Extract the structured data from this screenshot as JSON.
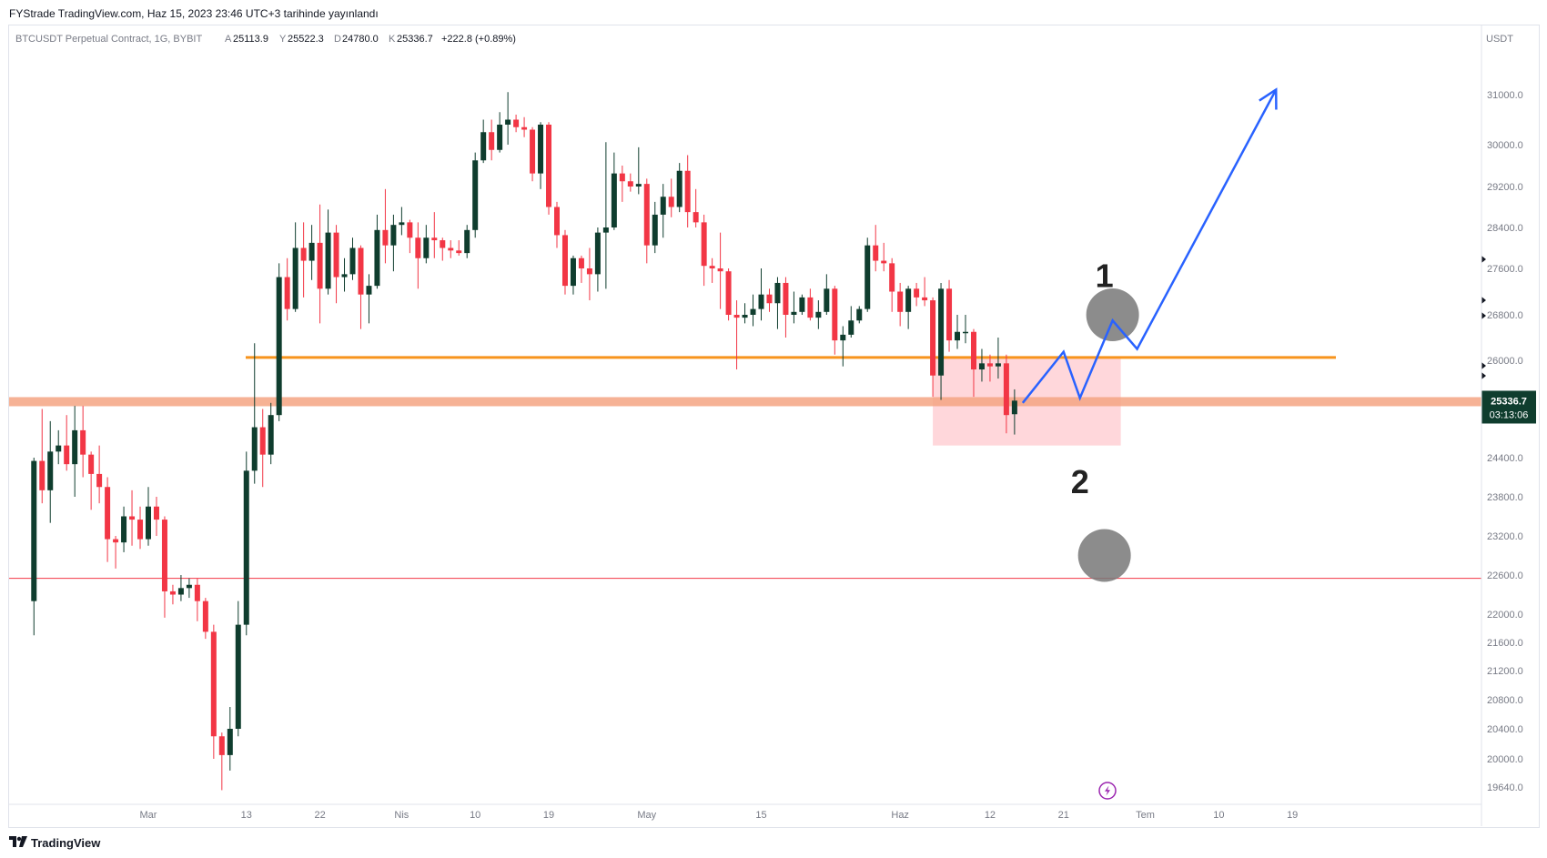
{
  "header": {
    "publish_line": "FYStrade TradingView.com, Haz 15, 2023 23:46 UTC+3 tarihinde yayınlandı"
  },
  "legend": {
    "symbol": "BTCUSDT Perpetual Contract, 1G, BYBIT",
    "o_label": "A",
    "o_val": "25113.9",
    "h_label": "Y",
    "h_val": "25522.3",
    "l_label": "D",
    "l_val": "24780.0",
    "c_label": "K",
    "c_val": "25336.7",
    "change": "+222.8 (+0.89%)"
  },
  "footer": {
    "brand": "TradingView"
  },
  "colors": {
    "up": "#0f3d2e",
    "down": "#f23645",
    "support_band": "#f4a582",
    "orange_line": "#f7941d",
    "red_line": "#f23645",
    "zone": "#ffcdd2",
    "projection": "#2962ff",
    "circle": "#787878",
    "price_tag": "#0f3d2e"
  },
  "chart_data": {
    "type": "candlestick",
    "currency": "USDT",
    "y_ticks": [
      31000,
      30000,
      29200,
      28400,
      27600,
      26800,
      26000,
      24400,
      23800,
      23200,
      22600,
      22000,
      21600,
      21200,
      20800,
      20400,
      20000,
      19640
    ],
    "y_tick_labels": [
      "31000.0",
      "30000.0",
      "29200.0",
      "28400.0",
      "27600.0",
      "26800.0",
      "26000.0",
      "24400.0",
      "23800.0",
      "23200.0",
      "22600.0",
      "22000.0",
      "21600.0",
      "21200.0",
      "20800.0",
      "20400.0",
      "20000.0",
      "19640.0"
    ],
    "x_labels": [
      {
        "label": "Mar",
        "date": "2023-03-01"
      },
      {
        "label": "13",
        "date": "2023-03-13"
      },
      {
        "label": "22",
        "date": "2023-03-22"
      },
      {
        "label": "Nis",
        "date": "2023-04-01"
      },
      {
        "label": "10",
        "date": "2023-04-10"
      },
      {
        "label": "19",
        "date": "2023-04-19"
      },
      {
        "label": "May",
        "date": "2023-05-01"
      },
      {
        "label": "15",
        "date": "2023-05-15"
      },
      {
        "label": "Haz",
        "date": "2023-06-01"
      },
      {
        "label": "12",
        "date": "2023-06-12"
      },
      {
        "label": "21",
        "date": "2023-06-21"
      },
      {
        "label": "Tem",
        "date": "2023-07-01"
      },
      {
        "label": "10",
        "date": "2023-07-10"
      },
      {
        "label": "19",
        "date": "2023-07-19"
      }
    ],
    "candles": [
      {
        "d": "2023-02-15",
        "o": 22200,
        "h": 24400,
        "l": 21700,
        "c": 24350
      },
      {
        "d": "2023-02-16",
        "o": 24350,
        "h": 25200,
        "l": 23700,
        "c": 23900
      },
      {
        "d": "2023-02-17",
        "o": 23900,
        "h": 25000,
        "l": 23400,
        "c": 24500
      },
      {
        "d": "2023-02-18",
        "o": 24500,
        "h": 24850,
        "l": 24300,
        "c": 24600
      },
      {
        "d": "2023-02-19",
        "o": 24600,
        "h": 25100,
        "l": 24200,
        "c": 24300
      },
      {
        "d": "2023-02-20",
        "o": 24300,
        "h": 25250,
        "l": 23800,
        "c": 24850
      },
      {
        "d": "2023-02-21",
        "o": 24850,
        "h": 25250,
        "l": 24100,
        "c": 24450
      },
      {
        "d": "2023-02-22",
        "o": 24450,
        "h": 24500,
        "l": 23600,
        "c": 24150
      },
      {
        "d": "2023-02-23",
        "o": 24150,
        "h": 24600,
        "l": 23700,
        "c": 23950
      },
      {
        "d": "2023-02-24",
        "o": 23950,
        "h": 24100,
        "l": 22800,
        "c": 23150
      },
      {
        "d": "2023-02-25",
        "o": 23150,
        "h": 23200,
        "l": 22700,
        "c": 23100
      },
      {
        "d": "2023-02-26",
        "o": 23100,
        "h": 23650,
        "l": 22950,
        "c": 23500
      },
      {
        "d": "2023-02-27",
        "o": 23500,
        "h": 23900,
        "l": 23050,
        "c": 23450
      },
      {
        "d": "2023-02-28",
        "o": 23450,
        "h": 23650,
        "l": 23000,
        "c": 23150
      },
      {
        "d": "2023-03-01",
        "o": 23150,
        "h": 23950,
        "l": 23050,
        "c": 23650
      },
      {
        "d": "2023-03-02",
        "o": 23650,
        "h": 23800,
        "l": 23200,
        "c": 23450
      },
      {
        "d": "2023-03-03",
        "o": 23450,
        "h": 23500,
        "l": 21950,
        "c": 22350
      },
      {
        "d": "2023-03-04",
        "o": 22350,
        "h": 22450,
        "l": 22150,
        "c": 22300
      },
      {
        "d": "2023-03-05",
        "o": 22300,
        "h": 22600,
        "l": 22200,
        "c": 22400
      },
      {
        "d": "2023-03-06",
        "o": 22400,
        "h": 22550,
        "l": 22250,
        "c": 22450
      },
      {
        "d": "2023-03-07",
        "o": 22450,
        "h": 22550,
        "l": 21900,
        "c": 22200
      },
      {
        "d": "2023-03-08",
        "o": 22200,
        "h": 22250,
        "l": 21650,
        "c": 21750
      },
      {
        "d": "2023-03-09",
        "o": 21750,
        "h": 21850,
        "l": 20000,
        "c": 20300
      },
      {
        "d": "2023-03-10",
        "o": 20300,
        "h": 20350,
        "l": 19600,
        "c": 20050
      },
      {
        "d": "2023-03-11",
        "o": 20050,
        "h": 20700,
        "l": 19850,
        "c": 20400
      },
      {
        "d": "2023-03-12",
        "o": 20400,
        "h": 22200,
        "l": 20300,
        "c": 21850
      },
      {
        "d": "2023-03-13",
        "o": 21850,
        "h": 24500,
        "l": 21700,
        "c": 24200
      },
      {
        "d": "2023-03-14",
        "o": 24200,
        "h": 26300,
        "l": 24000,
        "c": 24900
      },
      {
        "d": "2023-03-15",
        "o": 24900,
        "h": 25200,
        "l": 23950,
        "c": 24450
      },
      {
        "d": "2023-03-16",
        "o": 24450,
        "h": 25300,
        "l": 24300,
        "c": 25100
      },
      {
        "d": "2023-03-17",
        "o": 25100,
        "h": 27700,
        "l": 25000,
        "c": 27450
      },
      {
        "d": "2023-03-18",
        "o": 27450,
        "h": 27800,
        "l": 26700,
        "c": 26900
      },
      {
        "d": "2023-03-19",
        "o": 26900,
        "h": 28500,
        "l": 26850,
        "c": 28000
      },
      {
        "d": "2023-03-20",
        "o": 28000,
        "h": 28500,
        "l": 27100,
        "c": 27750
      },
      {
        "d": "2023-03-21",
        "o": 27750,
        "h": 28450,
        "l": 27400,
        "c": 28100
      },
      {
        "d": "2023-03-22",
        "o": 28100,
        "h": 28850,
        "l": 26650,
        "c": 27250
      },
      {
        "d": "2023-03-23",
        "o": 27250,
        "h": 28750,
        "l": 27150,
        "c": 28300
      },
      {
        "d": "2023-03-24",
        "o": 28300,
        "h": 28450,
        "l": 27000,
        "c": 27450
      },
      {
        "d": "2023-03-25",
        "o": 27450,
        "h": 27800,
        "l": 27200,
        "c": 27500
      },
      {
        "d": "2023-03-26",
        "o": 27500,
        "h": 28200,
        "l": 27400,
        "c": 28000
      },
      {
        "d": "2023-03-27",
        "o": 28000,
        "h": 28050,
        "l": 26550,
        "c": 27150
      },
      {
        "d": "2023-03-28",
        "o": 27150,
        "h": 27500,
        "l": 26650,
        "c": 27300
      },
      {
        "d": "2023-03-29",
        "o": 27300,
        "h": 28650,
        "l": 27250,
        "c": 28350
      },
      {
        "d": "2023-03-30",
        "o": 28350,
        "h": 29150,
        "l": 27700,
        "c": 28050
      },
      {
        "d": "2023-03-31",
        "o": 28050,
        "h": 28650,
        "l": 27550,
        "c": 28450
      },
      {
        "d": "2023-04-01",
        "o": 28450,
        "h": 28800,
        "l": 28250,
        "c": 28500
      },
      {
        "d": "2023-04-02",
        "o": 28500,
        "h": 28550,
        "l": 27900,
        "c": 28200
      },
      {
        "d": "2023-04-03",
        "o": 28200,
        "h": 28500,
        "l": 27250,
        "c": 27800
      },
      {
        "d": "2023-04-04",
        "o": 27800,
        "h": 28450,
        "l": 27700,
        "c": 28200
      },
      {
        "d": "2023-04-05",
        "o": 28200,
        "h": 28700,
        "l": 27800,
        "c": 28150
      },
      {
        "d": "2023-04-06",
        "o": 28150,
        "h": 28200,
        "l": 27750,
        "c": 28000
      },
      {
        "d": "2023-04-07",
        "o": 28000,
        "h": 28150,
        "l": 27800,
        "c": 27950
      },
      {
        "d": "2023-04-08",
        "o": 27950,
        "h": 28150,
        "l": 27850,
        "c": 27900
      },
      {
        "d": "2023-04-09",
        "o": 27900,
        "h": 28450,
        "l": 27800,
        "c": 28350
      },
      {
        "d": "2023-04-10",
        "o": 28350,
        "h": 29850,
        "l": 28200,
        "c": 29700
      },
      {
        "d": "2023-04-11",
        "o": 29700,
        "h": 30500,
        "l": 29650,
        "c": 30250
      },
      {
        "d": "2023-04-12",
        "o": 30250,
        "h": 30500,
        "l": 29700,
        "c": 29900
      },
      {
        "d": "2023-04-13",
        "o": 29900,
        "h": 30650,
        "l": 29850,
        "c": 30400
      },
      {
        "d": "2023-04-14",
        "o": 30400,
        "h": 31050,
        "l": 30000,
        "c": 30500
      },
      {
        "d": "2023-04-15",
        "o": 30500,
        "h": 30600,
        "l": 30250,
        "c": 30350
      },
      {
        "d": "2023-04-16",
        "o": 30350,
        "h": 30550,
        "l": 30150,
        "c": 30300
      },
      {
        "d": "2023-04-17",
        "o": 30300,
        "h": 30350,
        "l": 29300,
        "c": 29450
      },
      {
        "d": "2023-04-18",
        "o": 29450,
        "h": 30450,
        "l": 29150,
        "c": 30400
      },
      {
        "d": "2023-04-19",
        "o": 30400,
        "h": 30450,
        "l": 28650,
        "c": 28800
      },
      {
        "d": "2023-04-20",
        "o": 28800,
        "h": 28900,
        "l": 28000,
        "c": 28250
      },
      {
        "d": "2023-04-21",
        "o": 28250,
        "h": 28350,
        "l": 27150,
        "c": 27300
      },
      {
        "d": "2023-04-22",
        "o": 27300,
        "h": 27850,
        "l": 27150,
        "c": 27800
      },
      {
        "d": "2023-04-23",
        "o": 27800,
        "h": 27850,
        "l": 27350,
        "c": 27600
      },
      {
        "d": "2023-04-24",
        "o": 27600,
        "h": 28000,
        "l": 27050,
        "c": 27500
      },
      {
        "d": "2023-04-25",
        "o": 27500,
        "h": 28400,
        "l": 27200,
        "c": 28300
      },
      {
        "d": "2023-04-26",
        "o": 28300,
        "h": 30050,
        "l": 27250,
        "c": 28400
      },
      {
        "d": "2023-04-27",
        "o": 28400,
        "h": 29850,
        "l": 28350,
        "c": 29450
      },
      {
        "d": "2023-04-28",
        "o": 29450,
        "h": 29600,
        "l": 28900,
        "c": 29300
      },
      {
        "d": "2023-04-29",
        "o": 29300,
        "h": 29450,
        "l": 29100,
        "c": 29200
      },
      {
        "d": "2023-04-30",
        "o": 29200,
        "h": 29950,
        "l": 29050,
        "c": 29250
      },
      {
        "d": "2023-05-01",
        "o": 29250,
        "h": 29350,
        "l": 27700,
        "c": 28050
      },
      {
        "d": "2023-05-02",
        "o": 28050,
        "h": 28900,
        "l": 27900,
        "c": 28650
      },
      {
        "d": "2023-05-03",
        "o": 28650,
        "h": 29250,
        "l": 28200,
        "c": 29000
      },
      {
        "d": "2023-05-04",
        "o": 29000,
        "h": 29350,
        "l": 28600,
        "c": 28800
      },
      {
        "d": "2023-05-05",
        "o": 28800,
        "h": 29650,
        "l": 28700,
        "c": 29500
      },
      {
        "d": "2023-05-06",
        "o": 29500,
        "h": 29800,
        "l": 28400,
        "c": 28700
      },
      {
        "d": "2023-05-07",
        "o": 28700,
        "h": 29150,
        "l": 28400,
        "c": 28500
      },
      {
        "d": "2023-05-08",
        "o": 28500,
        "h": 28650,
        "l": 27300,
        "c": 27650
      },
      {
        "d": "2023-05-09",
        "o": 27650,
        "h": 27800,
        "l": 27350,
        "c": 27600
      },
      {
        "d": "2023-05-10",
        "o": 27600,
        "h": 28300,
        "l": 26900,
        "c": 27550
      },
      {
        "d": "2023-05-11",
        "o": 27550,
        "h": 27600,
        "l": 26700,
        "c": 26800
      },
      {
        "d": "2023-05-12",
        "o": 26800,
        "h": 27050,
        "l": 25850,
        "c": 26750
      },
      {
        "d": "2023-05-13",
        "o": 26750,
        "h": 27000,
        "l": 26650,
        "c": 26800
      },
      {
        "d": "2023-05-14",
        "o": 26800,
        "h": 27150,
        "l": 26600,
        "c": 26900
      },
      {
        "d": "2023-05-15",
        "o": 26900,
        "h": 27600,
        "l": 26700,
        "c": 27150
      },
      {
        "d": "2023-05-16",
        "o": 27150,
        "h": 27250,
        "l": 26850,
        "c": 27000
      },
      {
        "d": "2023-05-17",
        "o": 27000,
        "h": 27450,
        "l": 26550,
        "c": 27350
      },
      {
        "d": "2023-05-18",
        "o": 27350,
        "h": 27450,
        "l": 26400,
        "c": 26800
      },
      {
        "d": "2023-05-19",
        "o": 26800,
        "h": 27200,
        "l": 26650,
        "c": 26850
      },
      {
        "d": "2023-05-20",
        "o": 26850,
        "h": 27150,
        "l": 26800,
        "c": 27100
      },
      {
        "d": "2023-05-21",
        "o": 27100,
        "h": 27250,
        "l": 26700,
        "c": 26750
      },
      {
        "d": "2023-05-22",
        "o": 26750,
        "h": 27050,
        "l": 26550,
        "c": 26850
      },
      {
        "d": "2023-05-23",
        "o": 26850,
        "h": 27500,
        "l": 26800,
        "c": 27250
      },
      {
        "d": "2023-05-24",
        "o": 27250,
        "h": 27300,
        "l": 26100,
        "c": 26350
      },
      {
        "d": "2023-05-25",
        "o": 26350,
        "h": 26600,
        "l": 25900,
        "c": 26450
      },
      {
        "d": "2023-05-26",
        "o": 26450,
        "h": 26950,
        "l": 26400,
        "c": 26700
      },
      {
        "d": "2023-05-27",
        "o": 26700,
        "h": 26950,
        "l": 26650,
        "c": 26900
      },
      {
        "d": "2023-05-28",
        "o": 26900,
        "h": 28200,
        "l": 26850,
        "c": 28050
      },
      {
        "d": "2023-05-29",
        "o": 28050,
        "h": 28450,
        "l": 27550,
        "c": 27750
      },
      {
        "d": "2023-05-30",
        "o": 27750,
        "h": 28100,
        "l": 27550,
        "c": 27700
      },
      {
        "d": "2023-05-31",
        "o": 27700,
        "h": 27800,
        "l": 26850,
        "c": 27200
      },
      {
        "d": "2023-06-01",
        "o": 27200,
        "h": 27350,
        "l": 26600,
        "c": 26850
      },
      {
        "d": "2023-06-02",
        "o": 26850,
        "h": 27300,
        "l": 26550,
        "c": 27250
      },
      {
        "d": "2023-06-03",
        "o": 27250,
        "h": 27350,
        "l": 26950,
        "c": 27100
      },
      {
        "d": "2023-06-04",
        "o": 27100,
        "h": 27450,
        "l": 26950,
        "c": 27050
      },
      {
        "d": "2023-06-05",
        "o": 27050,
        "h": 27100,
        "l": 25400,
        "c": 25750
      },
      {
        "d": "2023-06-06",
        "o": 25750,
        "h": 27350,
        "l": 25350,
        "c": 27250
      },
      {
        "d": "2023-06-07",
        "o": 27250,
        "h": 27400,
        "l": 26150,
        "c": 26350
      },
      {
        "d": "2023-06-08",
        "o": 26350,
        "h": 26800,
        "l": 26200,
        "c": 26500
      },
      {
        "d": "2023-06-09",
        "o": 26500,
        "h": 26800,
        "l": 26300,
        "c": 26500
      },
      {
        "d": "2023-06-10",
        "o": 26500,
        "h": 26550,
        "l": 25400,
        "c": 25850
      },
      {
        "d": "2023-06-11",
        "o": 25850,
        "h": 26200,
        "l": 25650,
        "c": 25950
      },
      {
        "d": "2023-06-12",
        "o": 25950,
        "h": 26100,
        "l": 25650,
        "c": 25900
      },
      {
        "d": "2023-06-13",
        "o": 25900,
        "h": 26400,
        "l": 25700,
        "c": 25950
      },
      {
        "d": "2023-06-14",
        "o": 25950,
        "h": 26100,
        "l": 24800,
        "c": 25100
      },
      {
        "d": "2023-06-15",
        "o": 25113.9,
        "h": 25522.3,
        "l": 24780,
        "c": 25336.7
      }
    ],
    "price_tag": {
      "price": "25336.7",
      "countdown": "03:13:06"
    },
    "levels": {
      "orange_resistance": 26050,
      "support_band": 25320,
      "red_line": 22550
    },
    "zone": {
      "from": "2023-06-05",
      "to": "2023-06-28",
      "top": 26050,
      "bottom": 24600
    },
    "projection_path": [
      {
        "d": "2023-06-16",
        "p": 25300
      },
      {
        "d": "2023-06-21",
        "p": 26150
      },
      {
        "d": "2023-06-23",
        "p": 25380
      },
      {
        "d": "2023-06-27",
        "p": 26700
      },
      {
        "d": "2023-06-30",
        "p": 26200
      },
      {
        "d": "2023-07-17",
        "p": 31100
      }
    ],
    "scenario_labels": [
      {
        "text": "1",
        "d": "2023-06-26",
        "p": 27500
      },
      {
        "text": "2",
        "d": "2023-06-23",
        "p": 24050
      }
    ],
    "scenario_circles": [
      {
        "d": "2023-06-27",
        "p": 26800
      },
      {
        "d": "2023-06-26",
        "p": 22900
      }
    ]
  }
}
